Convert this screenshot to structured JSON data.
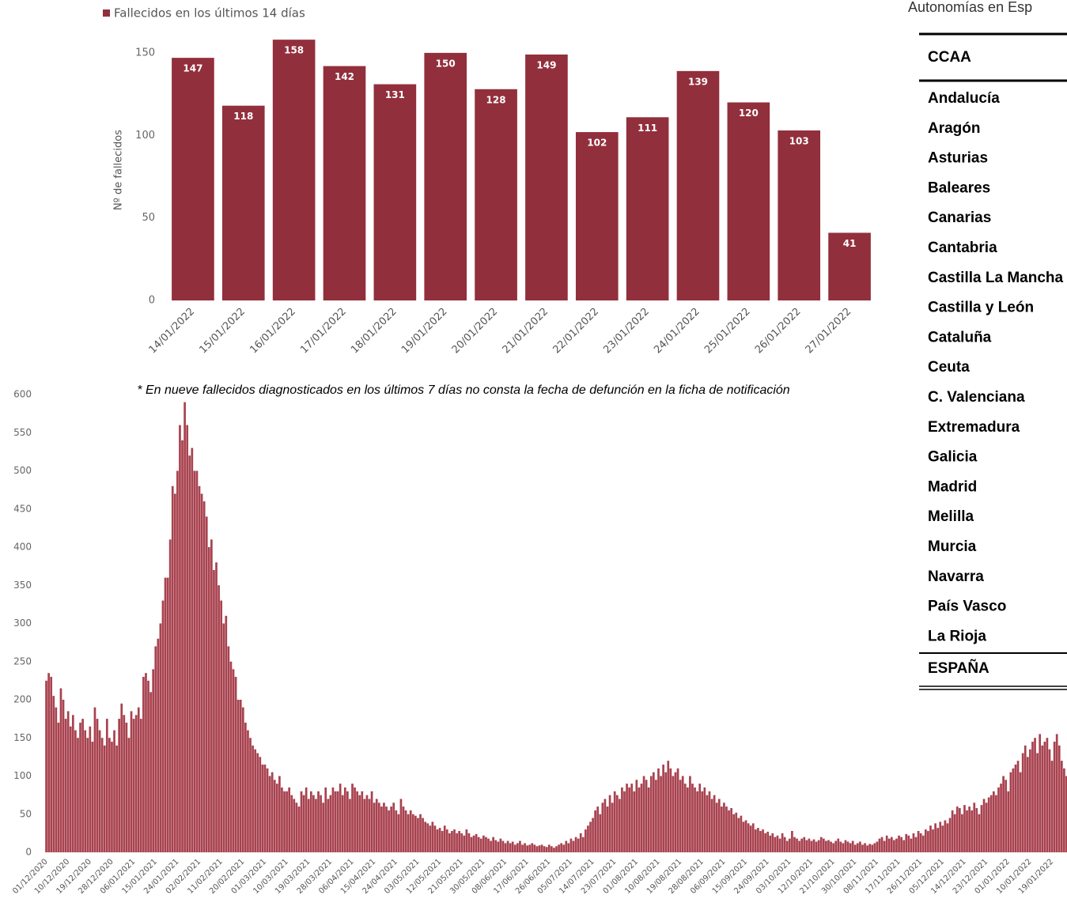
{
  "chart_data": [
    {
      "type": "bar",
      "legend": "top-left",
      "y_label": "Nº de fallecidos",
      "categories": [
        "14/01/2022",
        "15/01/2022",
        "16/01/2022",
        "17/01/2022",
        "18/01/2022",
        "19/01/2022",
        "20/01/2022",
        "21/01/2022",
        "22/01/2022",
        "23/01/2022",
        "24/01/2022",
        "25/01/2022",
        "26/01/2022",
        "27/01/2022"
      ],
      "series": [
        {
          "name": "Fallecidos en los últimos 14 días",
          "color": "#922f3c",
          "values": [
            147,
            118,
            158,
            142,
            131,
            150,
            128,
            149,
            102,
            111,
            139,
            120,
            103,
            41
          ]
        }
      ],
      "ylim": [
        0,
        160
      ],
      "yticks": [
        0,
        50,
        100,
        150
      ],
      "data_labels": true,
      "annotation": "* En nueve fallecidos diagnosticados en los últimos 7 días no consta la fecha de defunción en la ficha de notificación"
    },
    {
      "type": "bar",
      "color": "#a8424f",
      "ylim": [
        0,
        600
      ],
      "yticks": [
        0,
        50,
        100,
        150,
        200,
        250,
        300,
        350,
        400,
        450,
        500,
        550,
        600
      ],
      "categories": [
        "01/12/2020",
        null,
        null,
        null,
        null,
        null,
        null,
        null,
        null,
        "10/12/2020",
        null,
        null,
        null,
        null,
        null,
        null,
        null,
        null,
        "19/12/2020",
        null,
        null,
        null,
        null,
        null,
        null,
        null,
        null,
        "28/12/2020",
        null,
        null,
        null,
        null,
        null,
        null,
        null,
        null,
        "06/01/2021",
        null,
        null,
        null,
        null,
        null,
        null,
        null,
        null,
        "15/01/2021",
        null,
        null,
        null,
        null,
        null,
        null,
        null,
        null,
        "24/01/2021",
        null,
        null,
        null,
        null,
        null,
        null,
        null,
        null,
        "02/02/2021",
        null,
        null,
        null,
        null,
        null,
        null,
        null,
        null,
        "11/02/2021",
        null,
        null,
        null,
        null,
        null,
        null,
        null,
        null,
        "20/02/2021",
        null,
        null,
        null,
        null,
        null,
        null,
        null,
        null,
        "01/03/2021",
        null,
        null,
        null,
        null,
        null,
        null,
        null,
        null,
        "10/03/2021",
        null,
        null,
        null,
        null,
        null,
        null,
        null,
        null,
        "19/03/2021",
        null,
        null,
        null,
        null,
        null,
        null,
        null,
        null,
        "28/03/2021",
        null,
        null,
        null,
        null,
        null,
        null,
        null,
        null,
        "06/04/2021",
        null,
        null,
        null,
        null,
        null,
        null,
        null,
        null,
        "15/04/2021",
        null,
        null,
        null,
        null,
        null,
        null,
        null,
        null,
        "24/04/2021",
        null,
        null,
        null,
        null,
        null,
        null,
        null,
        null,
        "03/05/2021",
        null,
        null,
        null,
        null,
        null,
        null,
        null,
        null,
        "12/05/2021",
        null,
        null,
        null,
        null,
        null,
        null,
        null,
        null,
        "21/05/2021",
        null,
        null,
        null,
        null,
        null,
        null,
        null,
        null,
        "30/05/2021",
        null,
        null,
        null,
        null,
        null,
        null,
        null,
        null,
        "08/06/2021",
        null,
        null,
        null,
        null,
        null,
        null,
        null,
        null,
        "17/06/2021",
        null,
        null,
        null,
        null,
        null,
        null,
        null,
        null,
        "26/06/2021",
        null,
        null,
        null,
        null,
        null,
        null,
        null,
        null,
        "05/07/2021",
        null,
        null,
        null,
        null,
        null,
        null,
        null,
        null,
        "14/07/2021",
        null,
        null,
        null,
        null,
        null,
        null,
        null,
        null,
        "23/07/2021",
        null,
        null,
        null,
        null,
        null,
        null,
        null,
        null,
        "01/08/2021",
        null,
        null,
        null,
        null,
        null,
        null,
        null,
        null,
        "10/08/2021",
        null,
        null,
        null,
        null,
        null,
        null,
        null,
        null,
        "19/08/2021",
        null,
        null,
        null,
        null,
        null,
        null,
        null,
        null,
        "28/08/2021",
        null,
        null,
        null,
        null,
        null,
        null,
        null,
        null,
        "06/09/2021",
        null,
        null,
        null,
        null,
        null,
        null,
        null,
        null,
        "15/09/2021",
        null,
        null,
        null,
        null,
        null,
        null,
        null,
        null,
        "24/09/2021",
        null,
        null,
        null,
        null,
        null,
        null,
        null,
        null,
        "03/10/2021",
        null,
        null,
        null,
        null,
        null,
        null,
        null,
        null,
        "12/10/2021",
        null,
        null,
        null,
        null,
        null,
        null,
        null,
        null,
        "21/10/2021",
        null,
        null,
        null,
        null,
        null,
        null,
        null,
        null,
        "30/10/2021",
        null,
        null,
        null,
        null,
        null,
        null,
        null,
        null,
        "08/11/2021",
        null,
        null,
        null,
        null,
        null,
        null,
        null,
        null,
        "17/11/2021",
        null,
        null,
        null,
        null,
        null,
        null,
        null,
        null,
        "26/11/2021",
        null,
        null,
        null,
        null,
        null,
        null,
        null,
        null,
        "05/12/2021",
        null,
        null,
        null,
        null,
        null,
        null,
        null,
        null,
        "14/12/2021",
        null,
        null,
        null,
        null,
        null,
        null,
        null,
        null,
        "23/12/2021",
        null,
        null,
        null,
        null,
        null,
        null,
        null,
        null,
        "01/01/2022",
        null,
        null,
        null,
        null,
        null,
        null,
        null,
        null,
        "10/01/2022",
        null,
        null,
        null,
        null,
        null,
        null,
        null,
        null,
        "19/01/2022",
        null,
        null,
        null,
        null,
        null,
        null
      ],
      "values": [
        225,
        235,
        230,
        205,
        190,
        170,
        215,
        200,
        175,
        185,
        165,
        180,
        160,
        150,
        170,
        175,
        160,
        150,
        165,
        145,
        190,
        175,
        160,
        150,
        140,
        175,
        150,
        145,
        160,
        140,
        175,
        195,
        180,
        170,
        150,
        185,
        175,
        180,
        190,
        175,
        230,
        235,
        225,
        210,
        240,
        270,
        280,
        300,
        330,
        360,
        360,
        410,
        480,
        470,
        500,
        560,
        540,
        590,
        560,
        520,
        530,
        500,
        500,
        480,
        470,
        460,
        440,
        400,
        410,
        370,
        380,
        350,
        330,
        300,
        310,
        270,
        250,
        240,
        230,
        200,
        200,
        190,
        170,
        160,
        150,
        140,
        135,
        130,
        125,
        115,
        115,
        110,
        100,
        105,
        95,
        90,
        100,
        85,
        80,
        80,
        85,
        75,
        70,
        65,
        60,
        80,
        75,
        85,
        70,
        80,
        75,
        70,
        80,
        75,
        65,
        85,
        70,
        75,
        85,
        80,
        80,
        90,
        75,
        85,
        80,
        70,
        90,
        85,
        80,
        75,
        80,
        70,
        75,
        70,
        80,
        65,
        70,
        65,
        60,
        65,
        60,
        55,
        60,
        65,
        55,
        50,
        70,
        60,
        55,
        50,
        55,
        50,
        48,
        45,
        50,
        45,
        40,
        38,
        35,
        40,
        35,
        30,
        32,
        28,
        35,
        30,
        25,
        28,
        30,
        25,
        28,
        25,
        22,
        30,
        25,
        20,
        22,
        24,
        20,
        18,
        22,
        20,
        18,
        15,
        20,
        16,
        14,
        18,
        15,
        12,
        15,
        12,
        14,
        10,
        12,
        15,
        10,
        12,
        9,
        10,
        12,
        10,
        8,
        9,
        10,
        8,
        7,
        10,
        8,
        6,
        8,
        10,
        12,
        10,
        15,
        12,
        18,
        15,
        20,
        18,
        25,
        20,
        30,
        35,
        40,
        45,
        55,
        60,
        50,
        65,
        70,
        60,
        75,
        65,
        80,
        75,
        70,
        85,
        80,
        90,
        85,
        90,
        80,
        95,
        85,
        90,
        100,
        95,
        85,
        100,
        105,
        95,
        110,
        100,
        115,
        105,
        120,
        110,
        100,
        105,
        110,
        95,
        100,
        90,
        85,
        100,
        90,
        85,
        80,
        90,
        80,
        85,
        75,
        80,
        70,
        75,
        65,
        70,
        60,
        65,
        60,
        55,
        58,
        50,
        52,
        45,
        48,
        40,
        42,
        38,
        35,
        38,
        30,
        32,
        28,
        30,
        25,
        27,
        22,
        25,
        20,
        22,
        18,
        25,
        20,
        15,
        18,
        28,
        20,
        18,
        15,
        18,
        20,
        16,
        18,
        15,
        17,
        14,
        16,
        20,
        18,
        15,
        16,
        14,
        12,
        15,
        18,
        14,
        12,
        16,
        14,
        12,
        15,
        10,
        12,
        14,
        10,
        12,
        9,
        11,
        10,
        12,
        14,
        18,
        20,
        15,
        22,
        18,
        20,
        16,
        18,
        22,
        20,
        16,
        24,
        22,
        18,
        25,
        20,
        28,
        25,
        22,
        30,
        28,
        35,
        30,
        38,
        32,
        40,
        35,
        42,
        38,
        45,
        55,
        50,
        60,
        58,
        50,
        62,
        55,
        60,
        55,
        65,
        58,
        50,
        62,
        70,
        65,
        72,
        75,
        80,
        75,
        85,
        90,
        100,
        95,
        80,
        105,
        110,
        115,
        120,
        105,
        130,
        140,
        125,
        135,
        145,
        150,
        130,
        155,
        140,
        145,
        150,
        135,
        120,
        145,
        155,
        140,
        120,
        110,
        100
      ]
    }
  ],
  "table": {
    "title": "Autonomías en Esp",
    "header": "CCAA",
    "rows": [
      "Andalucía",
      "Aragón",
      "Asturias",
      "Baleares",
      "Canarias",
      "Cantabria",
      "Castilla La Mancha",
      "Castilla y León",
      "Cataluña",
      "Ceuta",
      "C. Valenciana",
      "Extremadura",
      "Galicia",
      "Madrid",
      "Melilla",
      "Murcia",
      "Navarra",
      "País Vasco",
      "La Rioja"
    ],
    "total": "ESPAÑA"
  }
}
